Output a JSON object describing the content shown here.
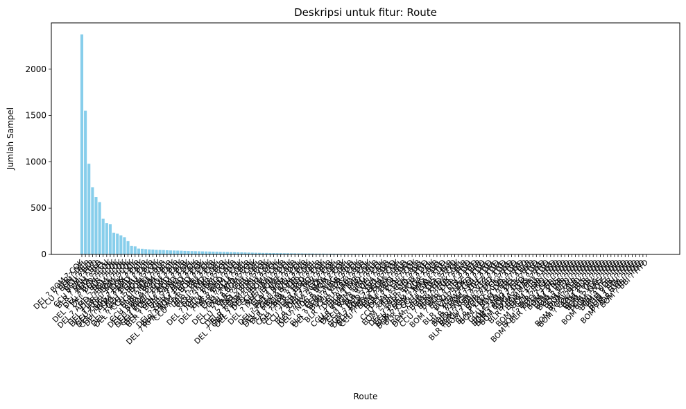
{
  "chart_data": {
    "type": "bar",
    "title": "Deskripsi untuk fitur: Route",
    "xlabel": "Route",
    "ylabel": "Jumlah Sampel",
    "ylim": [
      0,
      2500
    ],
    "yticks": [
      0,
      500,
      1000,
      1500,
      2000
    ],
    "bar_color": "#87ceeb",
    "grid": false,
    "categories": [
      "DEL ? BOM ? COK",
      "BLR ? DEL",
      "CCU ? BOM ? BLR",
      "CCU ? BLR",
      "BOM ? HYD",
      "CCU ? DEL ? BLR",
      "BLR ? BOM ? DEL",
      "MAA ? CCU",
      "DEL ? HYD ? COK",
      "DEL ? JAI ? BOM ? COK",
      "DEL ? BLR ? COK",
      "DEL ? COK",
      "DEL ? AMD ? BOM ? COK",
      "DEL ? MAA ? COK",
      "DEL ? IDR ? BOM ? COK",
      "DEL ? HYD ? MAA ? COK",
      "CCU ? DEL ? COK ? BLR",
      "DEL ? NAG ? BOM ? COK",
      "CCU ? BOM ? AMD ? BLR",
      "DEL ? LKO ? BOM ? COK",
      "CCU ? GAU ? BLR",
      "DEL ? ATQ ? BOM ? COK",
      "DEL ? CCU ? BOM ? COK",
      "CCU ? BBI ? BLR",
      "BLR ? MAA ? DEL",
      "CCU ? JAI ? BOM ? BLR",
      "DEL ? BDQ ? BOM ? COK",
      "CCU ? BOM ? GOI ? BLR",
      "DEL ? BHO ? BOM ? COK",
      "CCU ? DEL ? AMD ? BLR",
      "DEL ? GOI ? BOM ? COK",
      "BLR ? BOM ? AMD ? DEL",
      "DEL ? PNQ ? COK",
      "CCU ? HYD ? BLR",
      "DEL ? UDR ? BOM ? COK",
      "BLR ? BOM ? BHO ? DEL",
      "DEL ? RPR ? NAG ? BOM ? COK",
      "CCU ? IXR ? BBI ? BLR",
      "DEL ? TRV ? COK",
      "BLR ? HYD ? DEL",
      "CCU ? KNU ? BLR",
      "DEL ? LKO ? COK",
      "DEL ? JDH ? BOM ? COK",
      "CCU ? PNQ ? BLR",
      "BLR ? AMD ? DEL",
      "DEL ? IXC ? BOM ? COK",
      "BLR ? CCU ? DEL",
      "CCU ? MAA ? BLR",
      "DEL ? ATQ ? COK",
      "DEL ? IXU ? BOM ? COK",
      "BLR ? GOI ? DEL",
      "CCU ? VNS ? DEL ? BLR",
      "DEL ? BBI ? COK",
      "DEL ? RPR ? BOM ? COK",
      "BLR ? BOM ? JDH ? DEL",
      "DEL ? GWL ? IDR ? BOM ? COK",
      "DEL ? DED ? BOM ? COK",
      "CCU ? IXA ? BLR",
      "BLR ? BBI ? DEL",
      "DEL ? IXB ? BOM ? COK",
      "CCU ? IXB ? BLR",
      "BLR ? NAG ? DEL",
      "DEL ? PAT ? BOM ? COK",
      "CCU ? GAU ? DEL ? BLR",
      "DEL ? HBX ? BOM ? COK",
      "BLR ? BOM ? IDR ? DEL",
      "BLR ? LKO ? DEL",
      "CCU ? RPR ? HYD ? BLR",
      "DEL ? JLR ? BOM ? COK",
      "BLR ? PNQ ? DEL",
      "CCU ? BOM ? TRV ? BLR",
      "DEL ? VGA ? COK",
      "BLR ? TRV ? COK ? DEL",
      "CCU ? IXZ ? MAA ? BLR",
      "DEL ? NDC ? BOM ? COK",
      "BLR ? STV ? DEL",
      "CCU ? NAG ? BLR",
      "BLR ? BOM ? UDR ? DEL",
      "DEL ? BOM ? UDR ? COK",
      "CCU ? VTZ ? BLR",
      "BLR ? CCU ? BBI ? DEL",
      "DEL ? AMD ? COK",
      "BLR ? IDR ? DEL",
      "CCU ? BOM ? PNQ ? BLR",
      "BLR ? BOM ? IXC ? DEL",
      "DEL ? RAJ ? BOM ? COK",
      "CCU ? IXR ? DEL ? BLR",
      "BLR ? VGA ? DEL",
      "BOM ? DED ? DEL ? HYD",
      "DEL ? MAA ? BOM ? COK",
      "BLR ? HBX ? BOM ? DEL",
      "CCU ? BOM ? HBX ? BLR",
      "BLR ? BDQ ? DEL",
      "BOM ? BLR ? HYD",
      "DEL ? CCU ? COK",
      "CCU ? JAI ? DEL ? BLR",
      "BLR ? COK ? DEL",
      "BOM ? JDH ? DEL ? HYD",
      "BLR ? IXB ? DEL",
      "DEL ? BLR ? BOM ? COK",
      "CCU ? DEL ? VGA ? BLR",
      "BLR ? BOM ? NAG ? DEL",
      "BOM ? COK ? MAA ? HYD",
      "BLR ? CCU ? GAU ? DEL",
      "CCU ? VNS ? BLR",
      "BOM ? IDR ? DEL ? HYD",
      "DEL ? BOM ? HYD ? COK",
      "BLR ? HBX ? DEL",
      "CCU ? BOM ? COK ? BLR",
      "BOM ? DEL ? HYD",
      "BLR ? TRV ? DEL",
      "BOM ? BHO ? DEL ? HYD",
      "CCU ? IXZ ? BLR",
      "BOM ? NDC ? HYD",
      "BLR ? VGA ? HYD ? DEL",
      "BOM ? GOI ? HYD",
      "BLR ? BOM ? IXU ? DEL",
      "BOM ? VNS ? DEL ? HYD",
      "BLR ? VGA ? VTZ ? DEL",
      "BOM ? RPR ? VTZ ? HYD",
      "BLR ? CCU ? BBI ? HYD ? DEL",
      "BOM ? UDR ? DEL ? HYD",
      "BOM ? COK ? HYD",
      "BLR ? LKO ? COK ? DEL",
      "BOM ? IXC ? DEL ? HYD",
      "BOM ? BBI ? HYD",
      "CCU ? IXA ? DEL ? BLR",
      "BOM ? JAI ? DEL ? HYD",
      "BOM ? AMD ? ISK ? HYD",
      "BLR ? BOM ? DED ? DEL",
      "BOM ? VGA ? TIR ? HYD",
      "BOM ? MAA ? HYD",
      "BLR ? BOM ? BBI ? DEL",
      "BOM ? CCU ? HYD",
      "BOM ? IDR ? HYD",
      "BOM ? GOI ? PNQ ? HYD",
      "BLR ? CCU ? HYD",
      "BOM ? BDQ ? DEL ? HYD",
      "BOM ? BLR ? CCU ? BBI ? HYD",
      "BOM ? VNS ? HYD",
      "BOM ? IXR ? HYD",
      "BOM ? RPR ? HYD",
      "BOM ? DED ? HYD",
      "BOM ? IXU ? HYD",
      "BOM ? JLR ? HYD",
      "BOM ? BHO ? HYD",
      "BOM ? GOI ? HBX ? HYD",
      "BOM ? COK ? BLR ? HYD",
      "BOM ? IXB ? HYD",
      "BOM ? TRV ? HYD",
      "BOM ? VGA ? HYD",
      "BOM ? NAG ? HYD",
      "BOM ? VTZ ? HYD",
      "BOM ? BBI ? VTZ ? HYD",
      "BOM ? UDR ? HYD",
      "BOM ? RAJ ? HYD",
      "BOM ? STV ? HYD",
      "BOM ? GWL ? HYD",
      "BOM ? IDR ? BBI ? HYD",
      "BOM ? BBI ? HYD"
    ],
    "values": [
      2376,
      1552,
      979,
      724,
      621,
      565,
      385,
      337,
      327,
      234,
      225,
      206,
      185,
      143,
      91,
      87,
      63,
      61,
      57,
      54,
      52,
      49,
      48,
      47,
      45,
      43,
      42,
      41,
      40,
      38,
      37,
      36,
      35,
      34,
      33,
      32,
      31,
      30,
      29,
      28,
      27,
      26,
      25,
      24,
      23,
      22,
      21,
      20,
      19,
      18,
      17,
      16,
      16,
      15,
      15,
      14,
      14,
      13,
      13,
      12,
      12,
      11,
      11,
      10,
      10,
      10,
      9,
      9,
      9,
      8,
      8,
      8,
      7,
      7,
      7,
      6,
      6,
      6,
      6,
      5,
      5,
      5,
      5,
      5,
      4,
      4,
      4,
      4,
      4,
      4,
      3,
      3,
      3,
      3,
      3,
      3,
      3,
      3,
      2,
      2,
      2,
      2,
      2,
      2,
      2,
      2,
      2,
      2,
      2,
      2,
      2,
      2,
      2,
      1,
      1,
      1,
      1,
      1,
      1,
      1,
      1,
      1,
      1,
      1,
      1,
      1,
      1,
      1,
      1,
      1,
      1,
      1,
      1,
      1,
      1,
      1,
      1,
      1,
      1,
      1,
      1,
      1,
      1,
      1,
      1,
      1,
      1,
      1,
      1,
      1,
      1,
      1,
      1,
      1,
      1,
      1,
      1,
      1,
      1,
      1
    ]
  }
}
